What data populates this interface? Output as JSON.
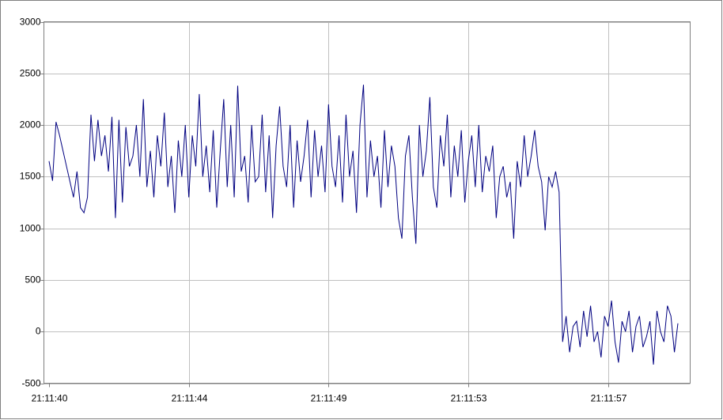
{
  "chart_data": {
    "type": "line",
    "categories": [
      "21:11:40",
      null,
      null,
      null,
      null,
      null,
      null,
      null,
      null,
      null,
      null,
      null,
      null,
      null,
      null,
      null,
      null,
      null,
      null,
      null,
      null,
      null,
      null,
      null,
      null,
      null,
      null,
      null,
      null,
      null,
      null,
      null,
      null,
      null,
      null,
      null,
      null,
      null,
      null,
      null,
      "21:11:44",
      null,
      null,
      null,
      null,
      null,
      null,
      null,
      null,
      null,
      null,
      null,
      null,
      null,
      null,
      null,
      null,
      null,
      null,
      null,
      null,
      null,
      null,
      null,
      null,
      null,
      null,
      null,
      null,
      null,
      null,
      null,
      null,
      null,
      null,
      null,
      null,
      null,
      null,
      null,
      "21:11:49",
      null,
      null,
      null,
      null,
      null,
      null,
      null,
      null,
      null,
      null,
      null,
      null,
      null,
      null,
      null,
      null,
      null,
      null,
      null,
      null,
      null,
      null,
      null,
      null,
      null,
      null,
      null,
      null,
      null,
      null,
      null,
      null,
      null,
      null,
      null,
      null,
      null,
      null,
      null,
      "21:11:53",
      null,
      null,
      null,
      null,
      null,
      null,
      null,
      null,
      null,
      null,
      null,
      null,
      null,
      null,
      null,
      null,
      null,
      null,
      null,
      null,
      null,
      null,
      null,
      null,
      null,
      null,
      null,
      null,
      null,
      null,
      null,
      null,
      null,
      null,
      null,
      null,
      null,
      null,
      null,
      "21:11:57",
      null,
      null,
      null,
      null,
      null,
      null,
      null,
      null,
      null,
      null,
      null,
      null,
      null,
      null,
      null,
      null,
      null,
      null,
      null,
      null
    ],
    "series": [
      {
        "name": null,
        "color": "#000080",
        "values": [
          1650,
          1460,
          2030,
          1900,
          1750,
          1600,
          1450,
          1300,
          1550,
          1200,
          1150,
          1300,
          2100,
          1650,
          2050,
          1700,
          1900,
          1550,
          2080,
          1100,
          2050,
          1250,
          1980,
          1600,
          1700,
          2000,
          1500,
          2250,
          1400,
          1750,
          1300,
          1900,
          1600,
          2120,
          1400,
          1700,
          1150,
          1850,
          1500,
          2000,
          1300,
          1900,
          1600,
          2300,
          1500,
          1800,
          1350,
          1950,
          1200,
          1750,
          2250,
          1400,
          2000,
          1300,
          2380,
          1550,
          1700,
          1250,
          2000,
          1450,
          1500,
          2100,
          1350,
          1900,
          1100,
          1800,
          2180,
          1600,
          1400,
          2000,
          1200,
          1850,
          1450,
          1700,
          2050,
          1300,
          1950,
          1500,
          1800,
          1350,
          2200,
          1600,
          1400,
          1900,
          1250,
          2100,
          1500,
          1750,
          1150,
          2000,
          2390,
          1300,
          1850,
          1500,
          1700,
          1200,
          1950,
          1400,
          1800,
          1600,
          1100,
          900,
          1700,
          1900,
          1300,
          850,
          2000,
          1500,
          1750,
          2270,
          1400,
          1200,
          1900,
          1600,
          2100,
          1300,
          1800,
          1500,
          1950,
          1250,
          1650,
          1900,
          1400,
          2000,
          1350,
          1700,
          1550,
          1800,
          1100,
          1500,
          1600,
          1300,
          1450,
          900,
          1650,
          1400,
          1900,
          1500,
          1700,
          1950,
          1600,
          1450,
          980,
          1500,
          1400,
          1550,
          1350,
          -100,
          150,
          -200,
          50,
          100,
          -150,
          200,
          -50,
          250,
          -100,
          0,
          -250,
          150,
          50,
          300,
          -100,
          -300,
          100,
          0,
          200,
          -200,
          50,
          150,
          -150,
          -50,
          100,
          -320,
          200,
          0,
          -100,
          250,
          150,
          -200,
          80
        ]
      }
    ],
    "ylim": [
      -500,
      3000
    ],
    "yticks": [
      -500,
      0,
      500,
      1000,
      1500,
      2000,
      2500,
      3000
    ],
    "grid": true
  }
}
